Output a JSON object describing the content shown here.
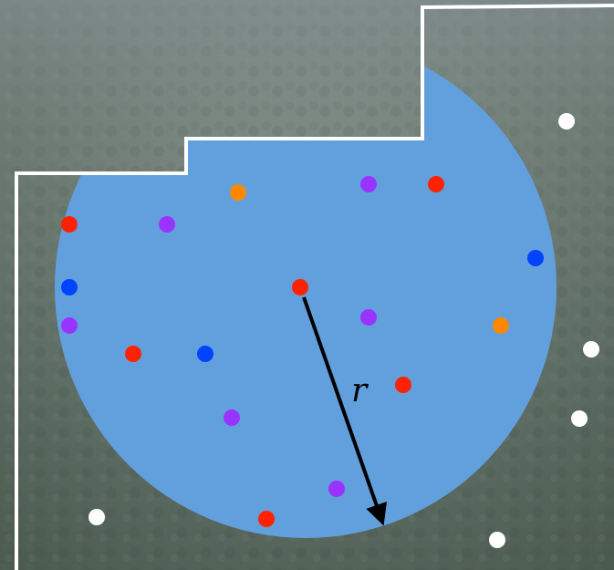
{
  "diagram": {
    "radius_label": "r",
    "colors": {
      "circle_fill": "#62a0dd",
      "boundary_stroke": "#ffffff",
      "arrow": "#000000",
      "point_colors": {
        "red": "#ff2200",
        "blue": "#0044ff",
        "purple": "#9933ff",
        "orange": "#ff8800",
        "white": "#ffffff"
      }
    },
    "points": [
      {
        "color": "orange"
      },
      {
        "color": "purple"
      },
      {
        "color": "red"
      },
      {
        "color": "red"
      },
      {
        "color": "purple"
      },
      {
        "color": "blue"
      },
      {
        "color": "blue"
      },
      {
        "color": "purple"
      },
      {
        "color": "red"
      },
      {
        "color": "purple"
      },
      {
        "color": "orange"
      },
      {
        "color": "red"
      },
      {
        "color": "blue"
      },
      {
        "color": "red"
      },
      {
        "color": "purple"
      },
      {
        "color": "purple"
      },
      {
        "color": "red"
      },
      {
        "color": "white"
      },
      {
        "color": "white"
      },
      {
        "color": "white"
      },
      {
        "color": "white"
      },
      {
        "color": "white"
      }
    ]
  }
}
